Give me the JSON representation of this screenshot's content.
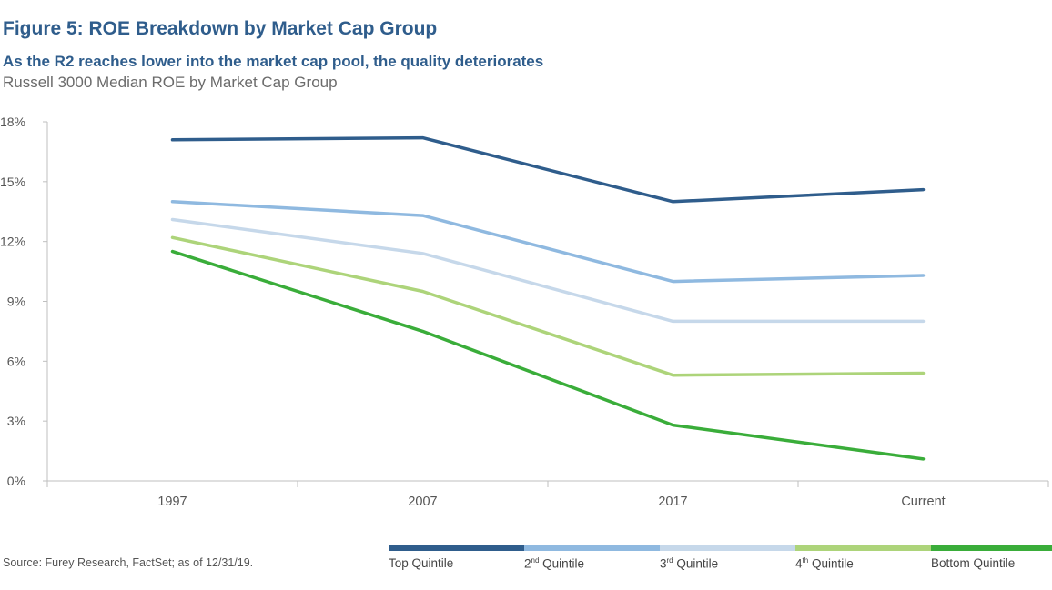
{
  "header": {
    "title": "Figure 5: ROE Breakdown by Market Cap Group",
    "subtitle": "As the R2 reaches lower into the market cap pool, the quality deteriorates",
    "description": "Russell 3000 Median ROE by Market Cap Group"
  },
  "footer": {
    "source": "Source: Furey Research, FactSet; as of 12/31/19."
  },
  "legend": {
    "items": [
      {
        "label": "Top Quintile",
        "color": "#2f5d8c"
      },
      {
        "label_num": "2",
        "label_sup": "nd",
        "label_text": " Quintile",
        "color": "#8fb9e0"
      },
      {
        "label_num": "3",
        "label_sup": "rd",
        "label_text": " Quintile",
        "color": "#c6d8ea"
      },
      {
        "label_num": "4",
        "label_sup": "th",
        "label_text": " Quintile",
        "color": "#add47a"
      },
      {
        "label": "Bottom Quintile",
        "color": "#3aad3a"
      }
    ]
  },
  "chart_data": {
    "type": "line",
    "categories": [
      "1997",
      "2007",
      "2017",
      "Current"
    ],
    "ylim": [
      0,
      18
    ],
    "yticks": [
      0,
      3,
      6,
      9,
      12,
      15,
      18
    ],
    "ytick_labels": [
      "0%",
      "3%",
      "6%",
      "9%",
      "12%",
      "15%",
      "18%"
    ],
    "grid": false,
    "legend_position": "bottom-right",
    "series": [
      {
        "name": "Top Quintile",
        "color": "#2f5d8c",
        "values": [
          17.1,
          17.2,
          14.0,
          14.6
        ]
      },
      {
        "name": "2nd Quintile",
        "color": "#8fb9e0",
        "values": [
          14.0,
          13.3,
          10.0,
          10.3
        ]
      },
      {
        "name": "3rd Quintile",
        "color": "#c6d8ea",
        "values": [
          13.1,
          11.4,
          8.0,
          8.0
        ]
      },
      {
        "name": "4th Quintile",
        "color": "#add47a",
        "values": [
          12.2,
          9.5,
          5.3,
          5.4
        ]
      },
      {
        "name": "Bottom Quintile",
        "color": "#3aad3a",
        "values": [
          11.5,
          7.5,
          2.8,
          1.1
        ]
      }
    ]
  }
}
